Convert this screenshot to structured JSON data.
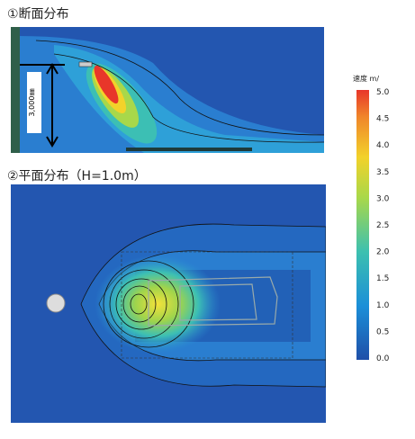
{
  "section": {
    "title": "①断面分布",
    "dimension": "3,000㎜"
  },
  "plan": {
    "title": "②平面分布（H=1.0m）"
  },
  "colorbar": {
    "label": "速度 m/",
    "ticks": [
      "5.0",
      "4.5",
      "4.0",
      "3.5",
      "3.0",
      "2.5",
      "2.0",
      "1.5",
      "1.0",
      "0.5",
      "0.0"
    ]
  }
}
